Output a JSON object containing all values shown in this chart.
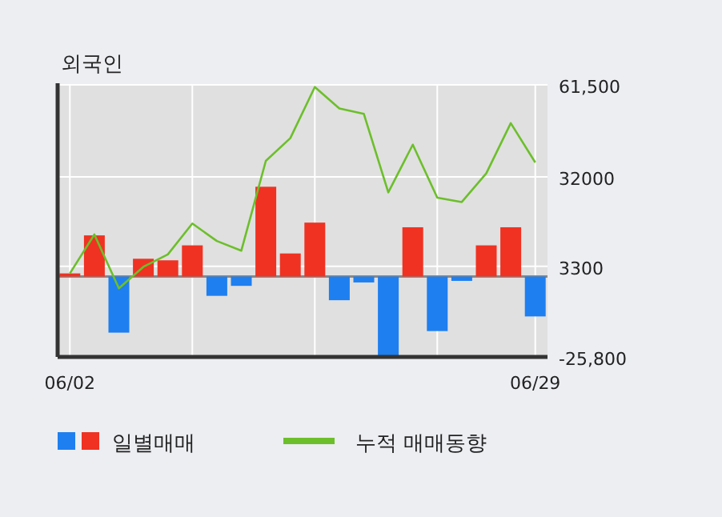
{
  "chart_data": {
    "type": "bar",
    "title": "외국인",
    "categories": [
      "06/02",
      null,
      null,
      null,
      null,
      null,
      null,
      null,
      null,
      null,
      null,
      null,
      null,
      null,
      null,
      null,
      null,
      null,
      null,
      "06/29"
    ],
    "series": [
      {
        "name": "일별매매",
        "values": [
          1000,
          13200,
          -18000,
          5700,
          5200,
          10000,
          -6200,
          -3000,
          28800,
          7400,
          17300,
          -7600,
          -1900,
          -25500,
          15800,
          -17500,
          -1400,
          10000,
          15800,
          -12800
        ],
        "colors": [
          "#f03222",
          "#f03222",
          "#1e7ff0",
          "#f03222",
          "#f03222",
          "#f03222",
          "#1e7ff0",
          "#1e7ff0",
          "#f03222",
          "#f03222",
          "#f03222",
          "#1e7ff0",
          "#1e7ff0",
          "#1e7ff0",
          "#f03222",
          "#1e7ff0",
          "#1e7ff0",
          "#f03222",
          "#f03222",
          "#1e7ff0"
        ]
      },
      {
        "name": "누적 매매동향",
        "type": "line",
        "color": "#6cbf2a",
        "values": [
          1000,
          13500,
          -3800,
          3100,
          7100,
          17000,
          11400,
          8300,
          37100,
          44400,
          60800,
          53900,
          52200,
          27000,
          42300,
          25300,
          23900,
          33100,
          49200,
          36600
        ]
      }
    ],
    "ylim": [
      -25800,
      61500
    ],
    "yticks": [
      {
        "value": 61500,
        "label": "61,500"
      },
      32000,
      3300,
      {
        "value": -25800,
        "label": "-25,800"
      }
    ],
    "grid": true,
    "legend": "bottom"
  }
}
